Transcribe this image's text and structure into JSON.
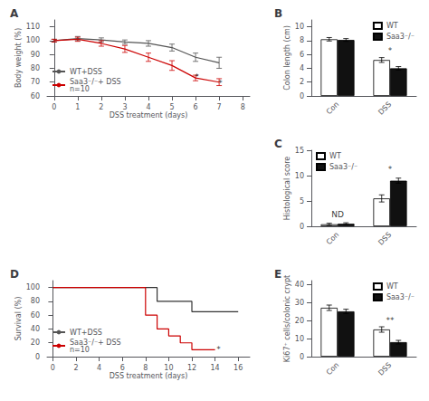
{
  "chart_data": [
    {
      "type": "line",
      "title": "A",
      "xlabel": "DSS treatment (days)",
      "ylabel": "Body weight (%)",
      "xlim": [
        -0.3,
        8.3
      ],
      "xticks": [
        0,
        1,
        2,
        3,
        4,
        5,
        6,
        7,
        8
      ],
      "ylim": [
        60,
        115
      ],
      "yticks": [
        60,
        70,
        80,
        90,
        100,
        110
      ],
      "grid": false,
      "legend": "lower left",
      "series": [
        {
          "name": "WT+DSS",
          "color": "#555555",
          "x": [
            0,
            1,
            2,
            3,
            4,
            5,
            6,
            7
          ],
          "values": [
            100,
            101.5,
            100.5,
            99,
            98,
            95,
            88,
            84
          ],
          "errors": [
            1.0,
            1.5,
            1.5,
            1.5,
            2.0,
            2.5,
            3.0,
            4.0
          ]
        },
        {
          "name": "Saa3⁻/⁻+ DSS\nn=10",
          "color": "#cc0000",
          "x": [
            0,
            1,
            2,
            3,
            4,
            5,
            6,
            7
          ],
          "values": [
            100,
            101,
            98,
            94,
            88,
            82,
            73,
            70
          ],
          "errors": [
            1.0,
            1.5,
            2.0,
            2.5,
            3.0,
            3.5,
            2.0,
            2.5
          ]
        }
      ],
      "annotations": [
        {
          "text": "*",
          "x": 6.05,
          "y": 71
        },
        {
          "text": "*",
          "x": 7.05,
          "y": 66
        }
      ]
    },
    {
      "type": "bar",
      "title": "B",
      "ylabel": "Colon length (cm)",
      "categories": [
        "Con",
        "DSS"
      ],
      "ylim": [
        0,
        11
      ],
      "yticks": [
        0,
        2,
        4,
        6,
        8,
        10
      ],
      "grid": false,
      "legend": "upper right",
      "series": [
        {
          "name": "WT",
          "color": "#ffffff",
          "values": [
            8.2,
            5.2
          ],
          "errors": [
            0.25,
            0.35
          ]
        },
        {
          "name": "Saa3⁻/⁻",
          "color": "#111111",
          "values": [
            8.1,
            4.0
          ],
          "errors": [
            0.2,
            0.25
          ]
        }
      ],
      "annotations": [
        {
          "text": "*",
          "x": "DSS",
          "y": 5.9
        }
      ]
    },
    {
      "type": "bar",
      "title": "C",
      "ylabel": "Histological score",
      "categories": [
        "Con",
        "DSS"
      ],
      "ylim": [
        0,
        15
      ],
      "yticks": [
        0,
        5,
        10,
        15
      ],
      "grid": false,
      "legend": "upper left",
      "series": [
        {
          "name": "WT",
          "color": "#ffffff",
          "values": [
            0.4,
            5.5
          ],
          "errors": [
            0.2,
            0.7
          ]
        },
        {
          "name": "Saa3⁻/⁻",
          "color": "#111111",
          "values": [
            0.5,
            9.0
          ],
          "errors": [
            0.2,
            0.5
          ]
        }
      ],
      "annotations": [
        {
          "text": "ND",
          "x": "Con",
          "y": 1.5
        },
        {
          "text": "*",
          "x": "DSS",
          "y": 10.5
        }
      ]
    },
    {
      "type": "step",
      "title": "D",
      "xlabel": "DSS treatment (days)",
      "ylabel": "Survival (%)",
      "xlim": [
        -0.5,
        17
      ],
      "xticks": [
        0,
        2,
        4,
        6,
        8,
        10,
        12,
        14,
        16
      ],
      "ylim": [
        0,
        110
      ],
      "yticks": [
        0,
        20,
        40,
        60,
        80,
        100
      ],
      "grid": false,
      "legend": "lower left",
      "series": [
        {
          "name": "WT+DSS",
          "color": "#333333",
          "x": [
            0,
            9,
            9,
            12,
            12,
            16
          ],
          "values": [
            100,
            100,
            80,
            80,
            65,
            65
          ]
        },
        {
          "name": "Saa3⁻/⁻+ DSS\nn=10",
          "color": "#cc0000",
          "x": [
            0,
            8,
            8,
            9,
            9,
            10,
            10,
            11,
            11,
            12,
            12,
            14,
            14
          ],
          "values": [
            100,
            100,
            60,
            60,
            40,
            40,
            30,
            30,
            20,
            20,
            10,
            10,
            10
          ]
        }
      ],
      "annotations": [
        {
          "text": "*",
          "x": 14.3,
          "y": 5
        }
      ]
    },
    {
      "type": "bar",
      "title": "E",
      "ylabel": "Ki67⁺ cells/colonic crypt",
      "categories": [
        "Con",
        "DSS"
      ],
      "ylim": [
        0,
        42
      ],
      "yticks": [
        0,
        10,
        20,
        30,
        40
      ],
      "grid": false,
      "legend": "upper right",
      "series": [
        {
          "name": "WT",
          "color": "#ffffff",
          "values": [
            27,
            15
          ],
          "errors": [
            1.5,
            1.5
          ]
        },
        {
          "name": "Saa3⁻/⁻",
          "color": "#111111",
          "values": [
            25,
            8
          ],
          "errors": [
            1.2,
            1.0
          ]
        }
      ],
      "annotations": [
        {
          "text": "**",
          "x": "DSS",
          "y": 18.0
        }
      ]
    }
  ]
}
